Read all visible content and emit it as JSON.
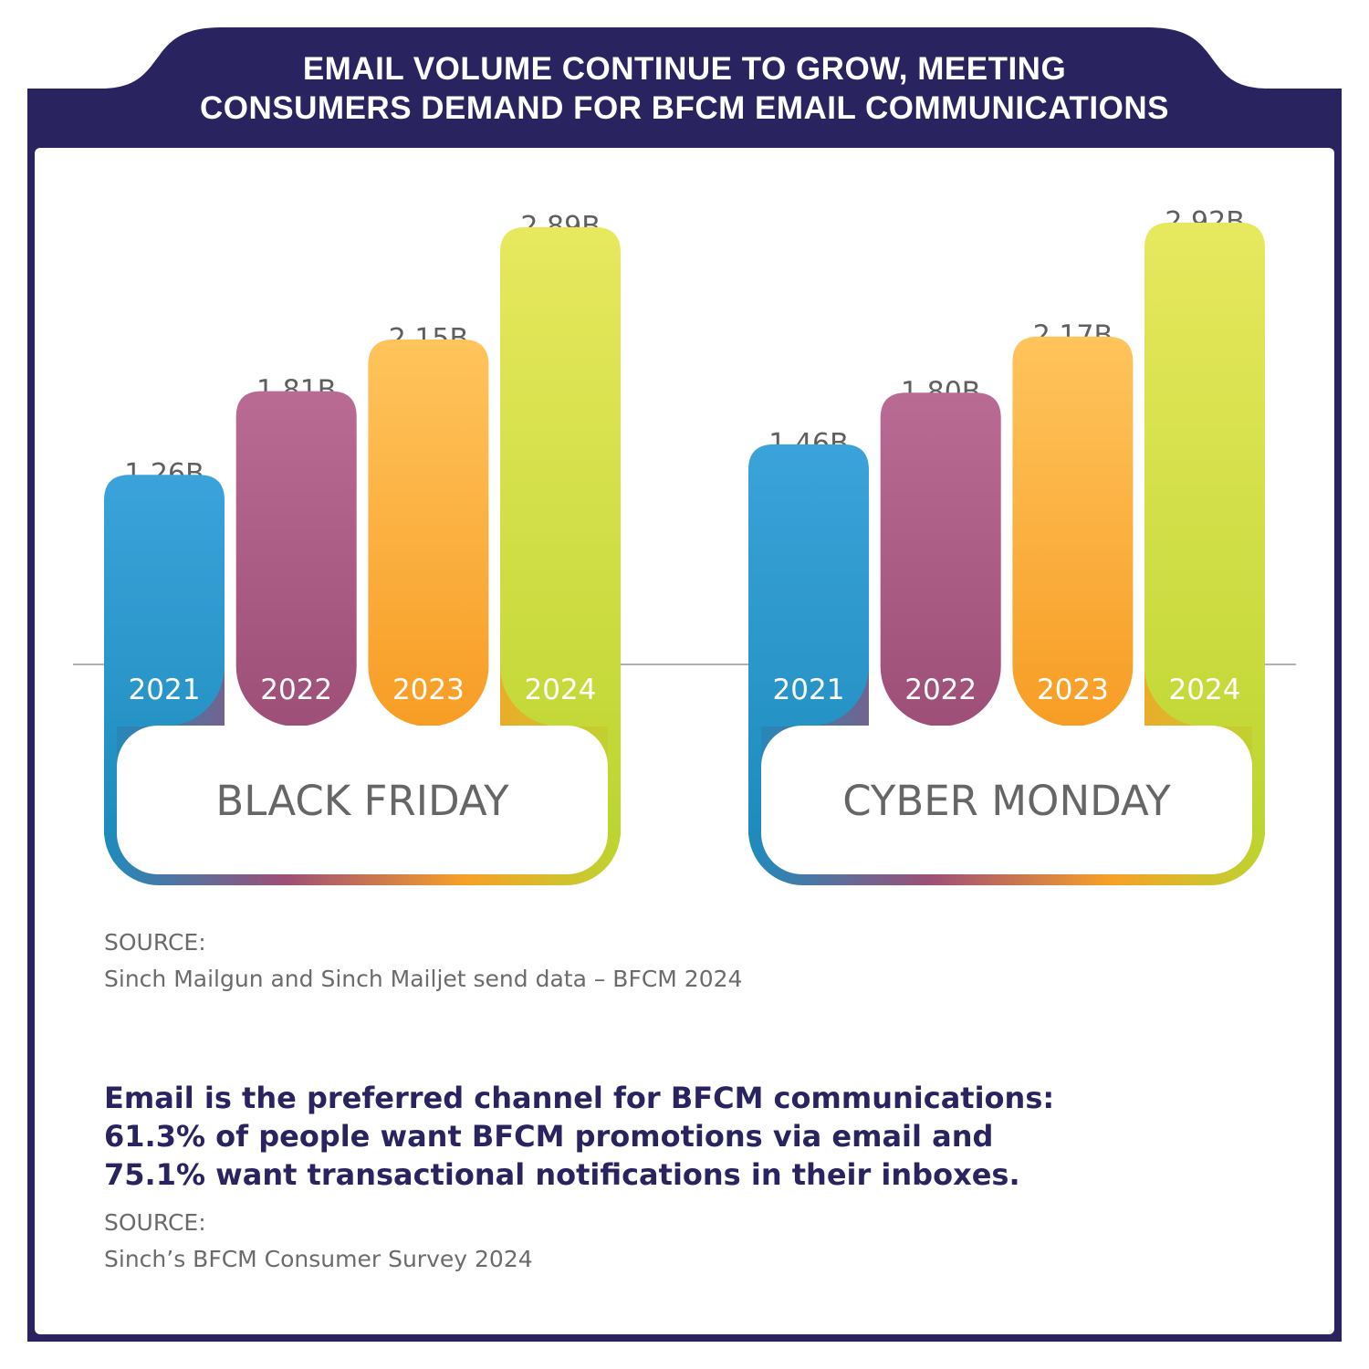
{
  "title": {
    "line1": "EMAIL VOLUME CONTINUE TO GROW, MEETING",
    "line2": "CONSUMERS DEMAND FOR BFCM EMAIL COMMUNICATIONS"
  },
  "colors": {
    "navy": "#29235f",
    "blue": "#2f98cf",
    "purple": "#a85a84",
    "orange": "#f9a93a",
    "green": "#cbdc3e",
    "text_gray": "#666666"
  },
  "chart_data": {
    "type": "bar",
    "unit": "B",
    "categories": [
      "2021",
      "2022",
      "2023",
      "2024"
    ],
    "groups": [
      {
        "name": "BLACK FRIDAY",
        "values": [
          1.26,
          1.81,
          2.15,
          2.89
        ],
        "labels": [
          "1.26B",
          "1.81B",
          "2.15B",
          "2.89B"
        ]
      },
      {
        "name": "CYBER MONDAY",
        "values": [
          1.46,
          1.8,
          2.17,
          2.92
        ],
        "labels": [
          "1.46B",
          "1.80B",
          "2.17B",
          "2.92B"
        ]
      }
    ]
  },
  "source1": {
    "label": "SOURCE:",
    "text": "Sinch Mailgun and Sinch Mailjet send data – BFCM 2024"
  },
  "highlight": {
    "line1": "Email is the preferred channel for BFCM communications:",
    "line2": "61.3% of people want BFCM promotions via email and",
    "line3": "75.1% want transactional notifications in their inboxes."
  },
  "source2": {
    "label": "SOURCE:",
    "text": "Sinch’s BFCM Consumer Survey 2024"
  }
}
